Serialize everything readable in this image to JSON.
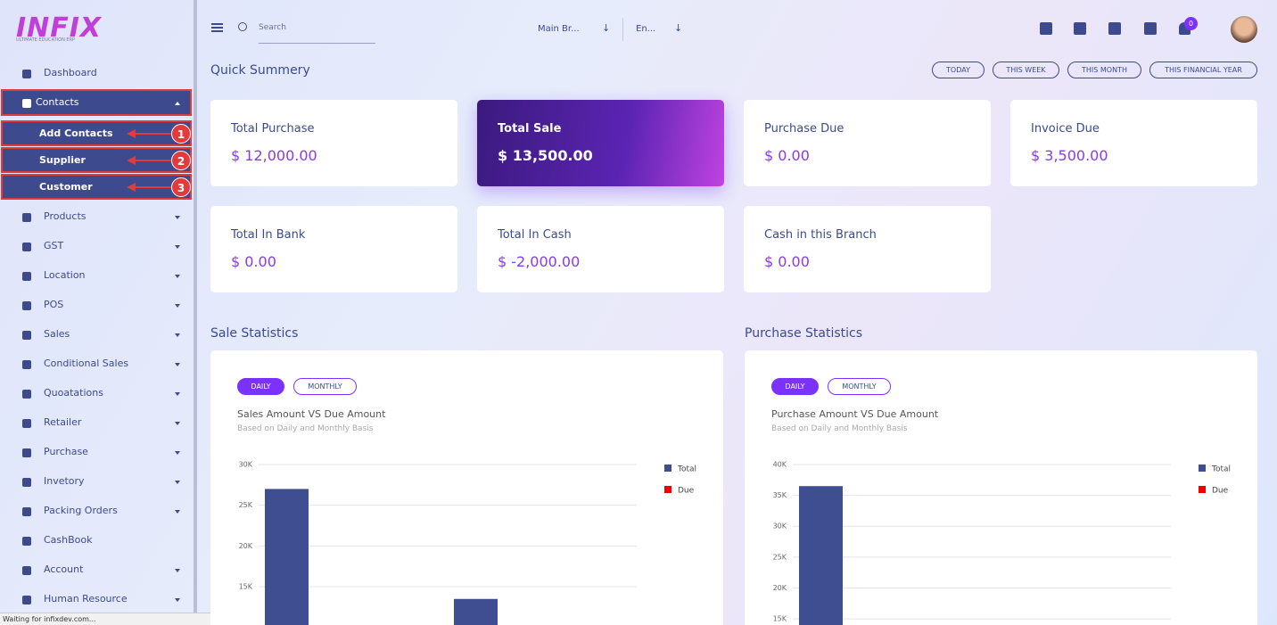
{
  "logo": {
    "title": "INFIX",
    "subtitle": "ULTIMATE EDUCATION ERP"
  },
  "sidebar": {
    "items": [
      {
        "label": "Dashboard",
        "expandable": false
      },
      {
        "label": "Contacts",
        "expandable": true,
        "children": [
          "Add Contacts",
          "Supplier",
          "Customer"
        ]
      },
      {
        "label": "Products",
        "expandable": true
      },
      {
        "label": "GST",
        "expandable": true
      },
      {
        "label": "Location",
        "expandable": true
      },
      {
        "label": "POS",
        "expandable": true
      },
      {
        "label": "Sales",
        "expandable": true
      },
      {
        "label": "Conditional Sales",
        "expandable": true
      },
      {
        "label": "Quoatations",
        "expandable": true
      },
      {
        "label": "Retailer",
        "expandable": true
      },
      {
        "label": "Purchase",
        "expandable": true
      },
      {
        "label": "Invetory",
        "expandable": true
      },
      {
        "label": "Packing Orders",
        "expandable": true
      },
      {
        "label": "CashBook",
        "expandable": false
      },
      {
        "label": "Account",
        "expandable": true
      },
      {
        "label": "Human Resource",
        "expandable": true
      }
    ],
    "annotations": [
      "1",
      "2",
      "3"
    ]
  },
  "topbar": {
    "search_placeholder": "Search",
    "branch": "Main Br...",
    "language": "En...",
    "notifications": 0
  },
  "summary": {
    "title": "Quick Summery",
    "filters": [
      "TODAY",
      "THIS WEEK",
      "THIS MONTH",
      "THIS FINANCIAL YEAR"
    ],
    "cards": [
      {
        "label": "Total Purchase",
        "value": "$ 12,000.00"
      },
      {
        "label": "Total Sale",
        "value": "$ 13,500.00"
      },
      {
        "label": "Purchase Due",
        "value": "$ 0.00"
      },
      {
        "label": "Invoice Due",
        "value": "$ 3,500.00"
      },
      {
        "label": "Total In Bank",
        "value": "$ 0.00"
      },
      {
        "label": "Total In Cash",
        "value": "$ -2,000.00"
      },
      {
        "label": "Cash in this Branch",
        "value": "$ 0.00"
      }
    ]
  },
  "charts": [
    {
      "heading": "Sale Statistics",
      "tabs": [
        "DAILY",
        "MONTHLY"
      ],
      "title": "Sales Amount VS Due Amount",
      "subtitle": "Based on Daily and Monthly Basis",
      "type": "bar",
      "categories": [
        null,
        null
      ],
      "ylim": [
        10300,
        30000
      ],
      "yticks": [
        {
          "value": 15000,
          "label": "15K"
        },
        {
          "value": 20000,
          "label": "20K"
        },
        {
          "value": 25000,
          "label": "25K"
        },
        {
          "value": 30000,
          "label": "30K"
        }
      ],
      "series": [
        {
          "name": "Total",
          "color": "#3f4e91",
          "values": [
            27000,
            13500
          ]
        },
        {
          "name": "Due",
          "color": "#f00000",
          "values": [
            null,
            null
          ]
        }
      ]
    },
    {
      "heading": "Purchase Statistics",
      "tabs": [
        "DAILY",
        "MONTHLY"
      ],
      "title": "Purchase Amount VS Due Amount",
      "subtitle": "Based on Daily and Monthly Basis",
      "type": "bar",
      "categories": [
        null,
        null
      ],
      "ylim": [
        14000,
        40000
      ],
      "yticks": [
        {
          "value": 15000,
          "label": "15K"
        },
        {
          "value": 20000,
          "label": "20K"
        },
        {
          "value": 25000,
          "label": "25K"
        },
        {
          "value": 30000,
          "label": "30K"
        },
        {
          "value": 35000,
          "label": "35K"
        },
        {
          "value": 40000,
          "label": "40K"
        }
      ],
      "series": [
        {
          "name": "Total",
          "color": "#3f4e91",
          "values": [
            36500,
            null
          ]
        },
        {
          "name": "Due",
          "color": "#f00000",
          "values": [
            null,
            null
          ]
        }
      ]
    }
  ],
  "status": "Waiting for infixdev.com..."
}
